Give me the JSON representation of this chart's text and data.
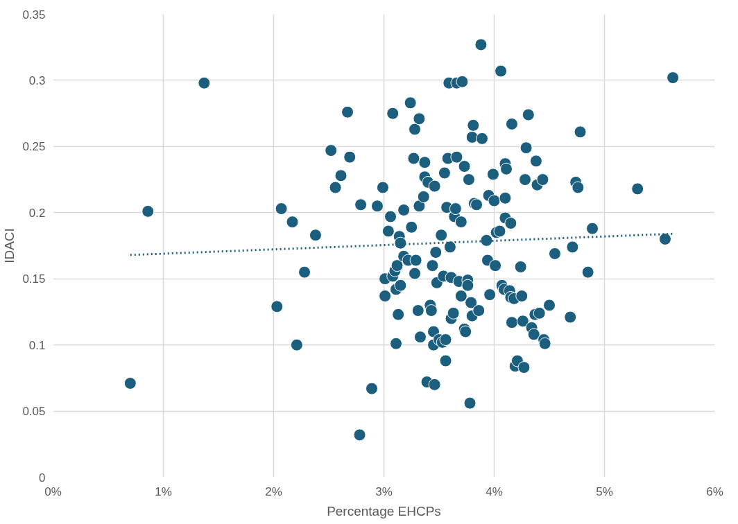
{
  "chart_data": {
    "type": "scatter",
    "xlabel": "Percentage EHCPs",
    "ylabel": "IDACI",
    "xlim": [
      0,
      6
    ],
    "ylim": [
      0,
      0.35
    ],
    "xticks": [
      {
        "value": 0,
        "label": "0%"
      },
      {
        "value": 1,
        "label": "1%"
      },
      {
        "value": 2,
        "label": "2%"
      },
      {
        "value": 3,
        "label": "3%"
      },
      {
        "value": 4,
        "label": "4%"
      },
      {
        "value": 5,
        "label": "5%"
      },
      {
        "value": 6,
        "label": "6%"
      }
    ],
    "yticks": [
      0,
      0.05,
      0.1,
      0.15,
      0.2,
      0.25,
      0.3,
      0.35
    ],
    "grid": true,
    "series": [
      {
        "color": "#1b5e7d",
        "marker": "circle",
        "x": [
          0.7,
          0.86,
          1.37,
          2.03,
          2.07,
          2.17,
          2.21,
          2.28,
          2.38,
          2.52,
          2.56,
          2.61,
          2.67,
          2.69,
          2.78,
          2.79,
          2.89,
          2.94,
          2.99,
          3.01,
          3.01,
          3.04,
          3.06,
          3.08,
          3.08,
          3.1,
          3.11,
          3.11,
          3.12,
          3.13,
          3.14,
          3.15,
          3.15,
          3.18,
          3.18,
          3.22,
          3.24,
          3.25,
          3.27,
          3.28,
          3.28,
          3.29,
          3.31,
          3.32,
          3.32,
          3.33,
          3.36,
          3.37,
          3.37,
          3.39,
          3.4,
          3.42,
          3.43,
          3.44,
          3.45,
          3.45,
          3.46,
          3.46,
          3.47,
          3.48,
          3.5,
          3.52,
          3.53,
          3.54,
          3.55,
          3.56,
          3.56,
          3.57,
          3.58,
          3.59,
          3.6,
          3.61,
          3.61,
          3.63,
          3.64,
          3.65,
          3.66,
          3.66,
          3.68,
          3.7,
          3.7,
          3.71,
          3.73,
          3.73,
          3.74,
          3.76,
          3.76,
          3.77,
          3.78,
          3.79,
          3.8,
          3.8,
          3.81,
          3.82,
          3.84,
          3.86,
          3.88,
          3.89,
          3.93,
          3.94,
          3.95,
          3.96,
          3.99,
          4.0,
          4.01,
          4.02,
          4.05,
          4.06,
          4.07,
          4.09,
          4.1,
          4.1,
          4.1,
          4.11,
          4.14,
          4.15,
          4.15,
          4.16,
          4.16,
          4.18,
          4.19,
          4.21,
          4.24,
          4.25,
          4.26,
          4.27,
          4.28,
          4.29,
          4.31,
          4.34,
          4.36,
          4.37,
          4.38,
          4.39,
          4.41,
          4.44,
          4.45,
          4.46,
          4.5,
          4.55,
          4.69,
          4.71,
          4.74,
          4.76,
          4.78,
          4.85,
          4.89,
          5.3,
          5.55,
          5.62
        ],
        "values": [
          0.071,
          0.201,
          0.298,
          0.129,
          0.203,
          0.193,
          0.1,
          0.155,
          0.183,
          0.247,
          0.219,
          0.228,
          0.276,
          0.242,
          0.032,
          0.206,
          0.067,
          0.205,
          0.219,
          0.137,
          0.15,
          0.186,
          0.197,
          0.275,
          0.152,
          0.156,
          0.142,
          0.101,
          0.16,
          0.123,
          0.182,
          0.177,
          0.145,
          0.202,
          0.167,
          0.164,
          0.283,
          0.189,
          0.241,
          0.263,
          0.154,
          0.164,
          0.126,
          0.205,
          0.271,
          0.106,
          0.212,
          0.238,
          0.227,
          0.072,
          0.223,
          0.13,
          0.126,
          0.16,
          0.1,
          0.11,
          0.22,
          0.07,
          0.17,
          0.147,
          0.104,
          0.183,
          0.102,
          0.152,
          0.23,
          0.088,
          0.104,
          0.204,
          0.241,
          0.298,
          0.174,
          0.151,
          0.12,
          0.124,
          0.197,
          0.203,
          0.242,
          0.298,
          0.148,
          0.137,
          0.193,
          0.299,
          0.235,
          0.112,
          0.11,
          0.149,
          0.145,
          0.225,
          0.056,
          0.132,
          0.122,
          0.257,
          0.266,
          0.207,
          0.206,
          0.126,
          0.327,
          0.256,
          0.179,
          0.164,
          0.213,
          0.138,
          0.229,
          0.209,
          0.16,
          0.185,
          0.186,
          0.307,
          0.145,
          0.142,
          0.237,
          0.211,
          0.196,
          0.233,
          0.141,
          0.136,
          0.192,
          0.267,
          0.117,
          0.135,
          0.084,
          0.088,
          0.159,
          0.137,
          0.118,
          0.083,
          0.225,
          0.249,
          0.274,
          0.113,
          0.108,
          0.123,
          0.239,
          0.221,
          0.124,
          0.225,
          0.104,
          0.101,
          0.13,
          0.169,
          0.121,
          0.174,
          0.223,
          0.219,
          0.261,
          0.155,
          0.188,
          0.218,
          0.18,
          0.302
        ]
      },
      {
        "type": "line",
        "color": "#1b5e7d",
        "line_style": "dotted",
        "x": [
          0.7,
          5.62
        ],
        "values": [
          0.168,
          0.184
        ]
      }
    ]
  }
}
